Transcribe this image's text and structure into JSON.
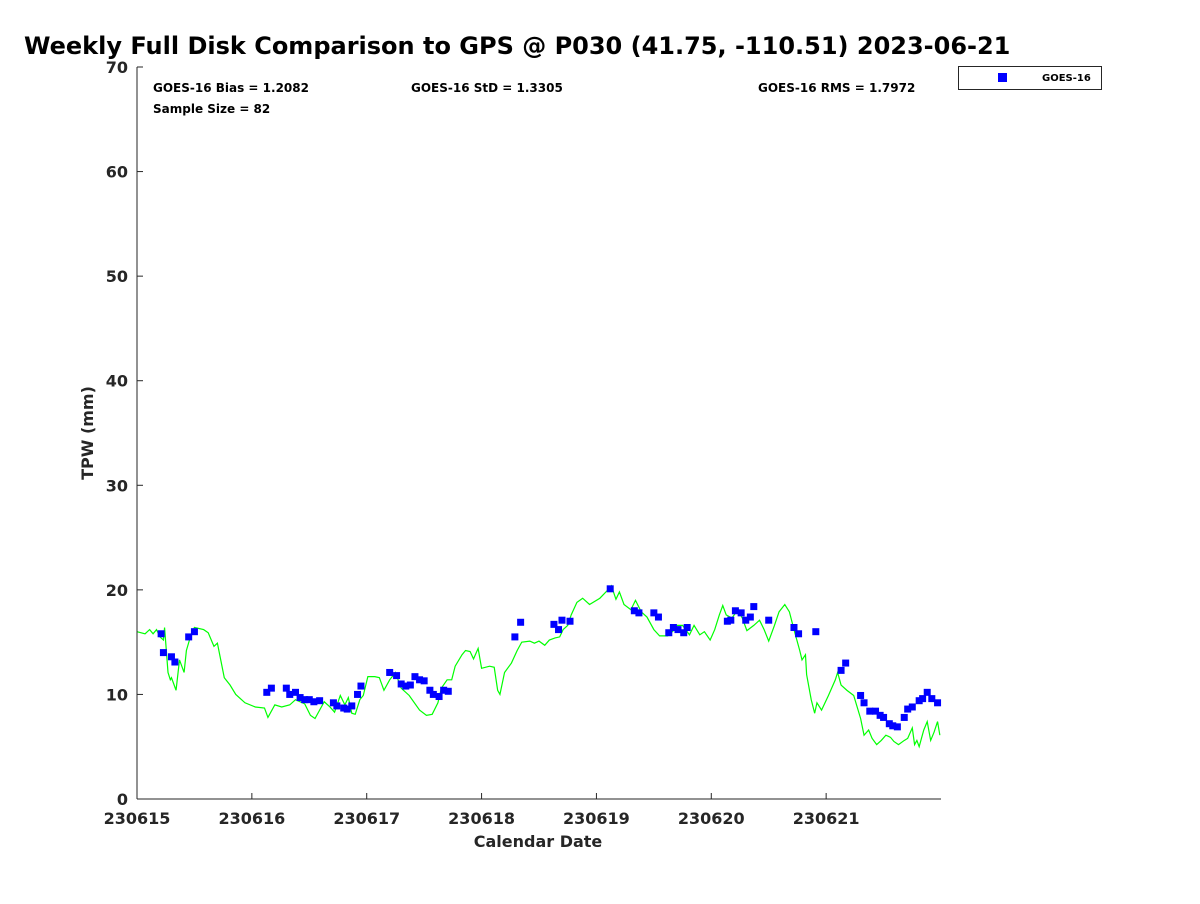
{
  "chart_data": {
    "type": "scatter",
    "title": "Weekly Full Disk Comparison to GPS @ P030 (41.75, -110.51) 2023-06-21",
    "xlabel": "Calendar Date",
    "ylabel": "TPW (mm)",
    "xlim": [
      0,
      7
    ],
    "ylim": [
      0,
      70
    ],
    "x_tick_values": [
      0,
      1,
      2,
      3,
      4,
      5,
      6
    ],
    "x_tick_labels": [
      "230615",
      "230616",
      "230617",
      "230618",
      "230619",
      "230620",
      "230621"
    ],
    "y_ticks": [
      0,
      10,
      20,
      30,
      40,
      50,
      60,
      70
    ],
    "y_tick_labels": [
      "0",
      "10",
      "20",
      "30",
      "40",
      "50",
      "60",
      "70"
    ],
    "grid": false,
    "legend": {
      "placement": "top-right outside",
      "entries": [
        "GOES-16"
      ]
    },
    "annotations": {
      "bias": "GOES-16 Bias = 1.2082",
      "std": "GOES-16 StD = 1.3305",
      "rms": "GOES-16 RMS = 1.7972",
      "sample": "Sample Size = 82"
    },
    "series": [
      {
        "name": "GOES-16",
        "kind": "scatter",
        "color": "#0000ff",
        "x": [
          0.21,
          0.23,
          0.3,
          0.33,
          0.45,
          0.5,
          1.13,
          1.17,
          1.3,
          1.33,
          1.38,
          1.42,
          1.46,
          1.5,
          1.54,
          1.59,
          1.71,
          1.74,
          1.8,
          1.83,
          1.87,
          1.92,
          1.95,
          2.2,
          2.26,
          2.3,
          2.34,
          2.38,
          2.42,
          2.46,
          2.5,
          2.55,
          2.58,
          2.63,
          2.67,
          2.71,
          3.29,
          3.34,
          3.63,
          3.67,
          3.7,
          3.77,
          4.12,
          4.33,
          4.37,
          4.5,
          4.54,
          4.63,
          4.67,
          4.71,
          4.76,
          4.79,
          5.14,
          5.17,
          5.21,
          5.26,
          5.3,
          5.34,
          5.37,
          5.5,
          5.72,
          5.76,
          5.91,
          6.13,
          6.17,
          6.3,
          6.33,
          6.38,
          6.43,
          6.47,
          6.5,
          6.55,
          6.58,
          6.62,
          6.68,
          6.71,
          6.75,
          6.81,
          6.84,
          6.88,
          6.92,
          6.97
        ],
        "y": [
          15.8,
          14.0,
          13.6,
          13.1,
          15.5,
          16.0,
          10.2,
          10.6,
          10.6,
          10.0,
          10.2,
          9.7,
          9.5,
          9.5,
          9.3,
          9.4,
          9.2,
          8.9,
          8.7,
          8.6,
          8.9,
          10.0,
          10.8,
          12.1,
          11.8,
          11.0,
          10.8,
          10.9,
          11.7,
          11.4,
          11.3,
          10.4,
          10.0,
          9.8,
          10.4,
          10.3,
          15.5,
          16.9,
          16.7,
          16.2,
          17.1,
          17.0,
          20.1,
          18.0,
          17.8,
          17.8,
          17.4,
          15.9,
          16.4,
          16.2,
          15.9,
          16.4,
          17.0,
          17.1,
          18.0,
          17.8,
          17.1,
          17.4,
          18.4,
          17.1,
          16.4,
          15.8,
          16.0,
          12.3,
          13.0,
          9.9,
          9.2,
          8.4,
          8.4,
          8.0,
          7.8,
          7.2,
          7.0,
          6.9,
          7.8,
          8.6,
          8.8,
          9.4,
          9.6,
          10.2,
          9.6,
          9.2
        ]
      },
      {
        "name": "GPS",
        "kind": "line",
        "color": "#00ff00",
        "x": [
          0,
          0.07,
          0.11,
          0.14,
          0.17,
          0.2,
          0.23,
          0.24,
          0.27,
          0.29,
          0.3,
          0.34,
          0.37,
          0.41,
          0.43,
          0.47,
          0.5,
          0.58,
          0.62,
          0.67,
          0.7,
          0.76,
          0.81,
          0.86,
          0.94,
          1.03,
          1.11,
          1.14,
          1.2,
          1.26,
          1.33,
          1.38,
          1.46,
          1.51,
          1.55,
          1.59,
          1.63,
          1.68,
          1.72,
          1.77,
          1.81,
          1.84,
          1.87,
          1.9,
          1.94,
          1.97,
          2.01,
          2.07,
          2.11,
          2.15,
          2.2,
          2.25,
          2.3,
          2.37,
          2.46,
          2.52,
          2.57,
          2.62,
          2.65,
          2.7,
          2.74,
          2.77,
          2.83,
          2.86,
          2.9,
          2.93,
          2.97,
          3.0,
          3.07,
          3.11,
          3.14,
          3.16,
          3.2,
          3.26,
          3.31,
          3.35,
          3.42,
          3.46,
          3.5,
          3.55,
          3.59,
          3.64,
          3.68,
          3.71,
          3.75,
          3.78,
          3.83,
          3.88,
          3.94,
          4.03,
          4.1,
          4.13,
          4.17,
          4.2,
          4.24,
          4.3,
          4.34,
          4.39,
          4.44,
          4.5,
          4.55,
          4.62,
          4.68,
          4.7,
          4.75,
          4.81,
          4.85,
          4.9,
          4.94,
          4.99,
          5.03,
          5.07,
          5.1,
          5.13,
          5.18,
          5.23,
          5.27,
          5.31,
          5.37,
          5.42,
          5.46,
          5.5,
          5.55,
          5.59,
          5.64,
          5.68,
          5.72,
          5.77,
          5.79,
          5.82,
          5.83,
          5.87,
          5.9,
          5.92,
          5.96,
          6.02,
          6.08,
          6.1,
          6.13,
          6.18,
          6.24,
          6.3,
          6.33,
          6.37,
          6.4,
          6.44,
          6.48,
          6.52,
          6.56,
          6.59,
          6.63,
          6.68,
          6.71,
          6.75,
          6.77,
          6.79,
          6.81,
          6.85,
          6.88,
          6.91,
          6.94,
          6.97,
          6.99
        ],
        "y": [
          16.0,
          15.8,
          16.2,
          15.8,
          16.2,
          15.5,
          15.2,
          16.4,
          12.1,
          11.4,
          11.6,
          10.4,
          13.3,
          12.1,
          14.2,
          15.7,
          16.4,
          16.2,
          15.9,
          14.6,
          14.9,
          11.6,
          10.9,
          10.0,
          9.2,
          8.8,
          8.7,
          7.8,
          9.0,
          8.8,
          9.0,
          9.5,
          9.1,
          8.0,
          7.7,
          8.5,
          9.3,
          8.8,
          8.3,
          9.9,
          9.0,
          9.7,
          8.2,
          8.1,
          9.5,
          9.9,
          11.7,
          11.7,
          11.6,
          10.4,
          11.4,
          12.1,
          10.6,
          9.9,
          8.5,
          8.0,
          8.1,
          9.2,
          10.6,
          11.4,
          11.4,
          12.7,
          13.8,
          14.2,
          14.1,
          13.4,
          14.4,
          12.5,
          12.7,
          12.6,
          10.4,
          10.0,
          12.1,
          13.0,
          14.2,
          15.0,
          15.1,
          14.9,
          15.1,
          14.7,
          15.2,
          15.4,
          15.5,
          16.2,
          16.6,
          17.6,
          18.8,
          19.2,
          18.6,
          19.2,
          20.0,
          20.4,
          19.1,
          19.8,
          18.6,
          18.1,
          19.0,
          17.9,
          17.4,
          16.2,
          15.6,
          15.6,
          16.2,
          16.6,
          16.6,
          15.7,
          16.6,
          15.7,
          16.0,
          15.2,
          16.2,
          17.6,
          18.5,
          17.6,
          17.3,
          18.1,
          17.3,
          16.1,
          16.6,
          17.1,
          16.2,
          15.1,
          16.6,
          17.9,
          18.6,
          17.9,
          16.2,
          14.2,
          13.3,
          13.8,
          11.9,
          9.5,
          8.2,
          9.2,
          8.5,
          9.9,
          11.4,
          12.1,
          10.9,
          10.4,
          9.9,
          7.7,
          6.1,
          6.6,
          5.8,
          5.2,
          5.6,
          6.1,
          5.9,
          5.5,
          5.2,
          5.6,
          5.8,
          6.8,
          5.2,
          5.6,
          5.0,
          6.6,
          7.4,
          5.6,
          6.4,
          7.4,
          6.1
        ]
      }
    ]
  }
}
